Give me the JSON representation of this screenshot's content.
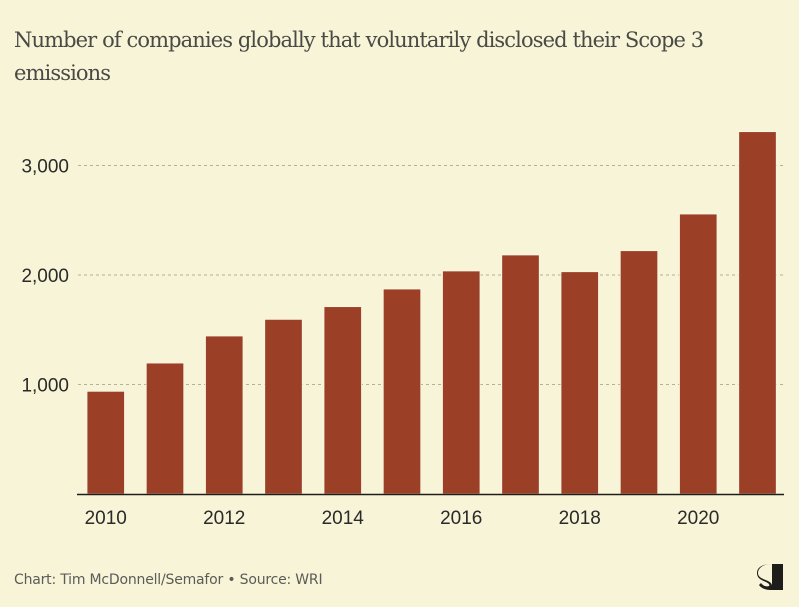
{
  "chart_data": {
    "type": "bar",
    "title": "Number of companies globally that voluntarily disclosed their Scope 3 emissions",
    "xlabel": "",
    "ylabel": "",
    "categories": [
      "2010",
      "2011",
      "2012",
      "2013",
      "2014",
      "2015",
      "2016",
      "2017",
      "2018",
      "2019",
      "2020",
      "2021"
    ],
    "values": [
      938,
      1196,
      1443,
      1595,
      1711,
      1872,
      2037,
      2183,
      2030,
      2222,
      2557,
      3309
    ],
    "ylim": [
      0,
      3300
    ],
    "yticks": [
      {
        "value": 1000,
        "label": "1,000"
      },
      {
        "value": 2000,
        "label": "2,000"
      },
      {
        "value": 3000,
        "label": "3,000"
      }
    ],
    "xticks": [
      "2010",
      "2012",
      "2014",
      "2016",
      "2018",
      "2020"
    ],
    "grid": true,
    "bar_color": "#9B3F27"
  },
  "footer": {
    "credit": "Chart: Tim McDonnell/Semafor • Source: WRI"
  },
  "logo": {
    "icon": "semafor-logo-icon"
  }
}
